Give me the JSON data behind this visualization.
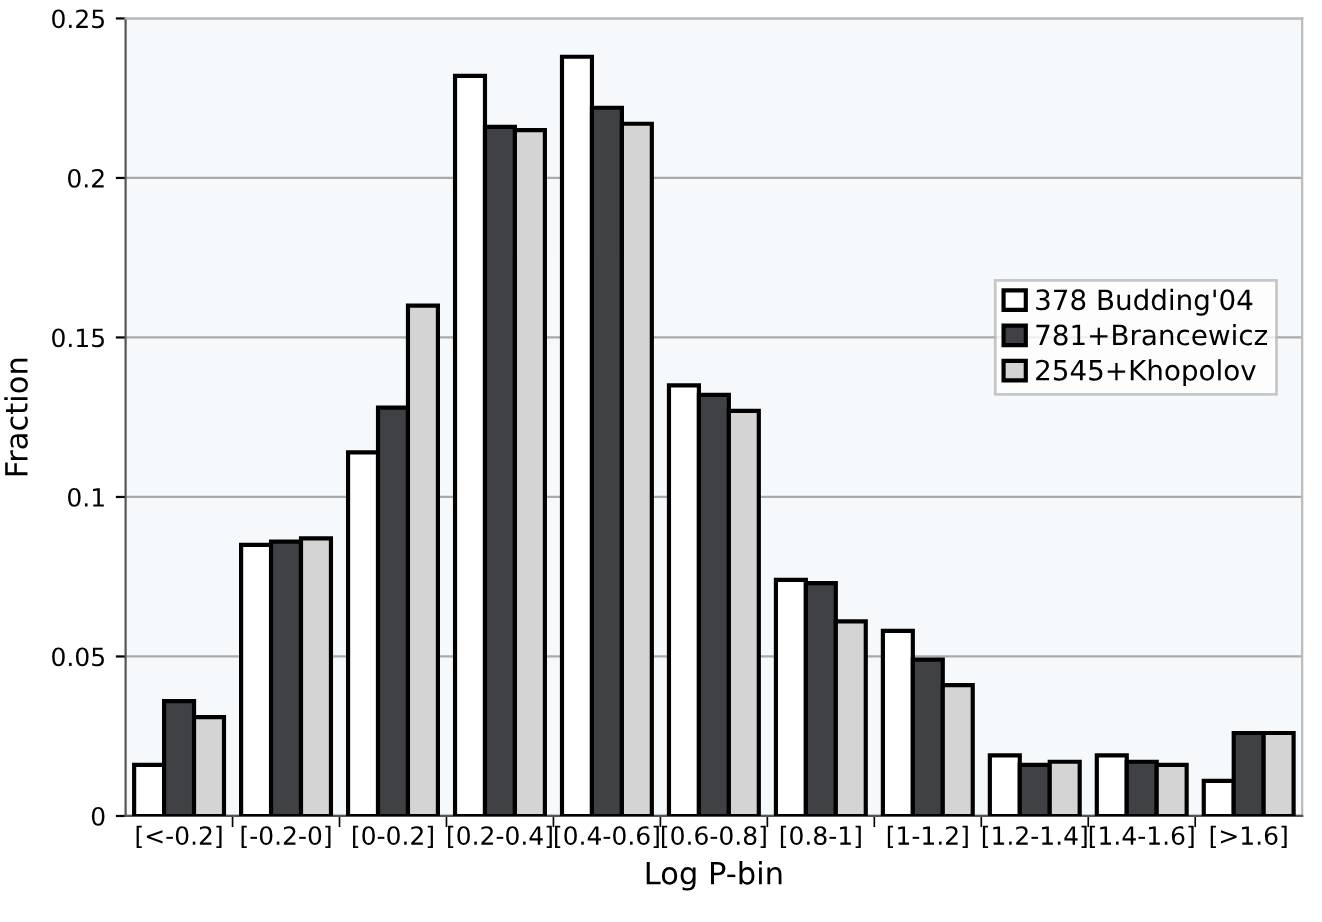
{
  "chart_data": {
    "type": "bar",
    "xlabel": "Log P-bin",
    "ylabel": "Fraction",
    "categories": [
      "[<-0.2]",
      "[-0.2-0]",
      "[0-0.2]",
      "[0.2-0.4]",
      "[0.4-0.6]",
      "[0.6-0.8]",
      "[0.8-1]",
      "[1-1.2]",
      "[1.2-1.4]",
      "[1.4-1.6]",
      "[>1.6]"
    ],
    "series": [
      {
        "name": "378 Budding'04",
        "color": "#ffffff",
        "values": [
          0.016,
          0.085,
          0.114,
          0.232,
          0.238,
          0.135,
          0.074,
          0.058,
          0.019,
          0.019,
          0.011
        ]
      },
      {
        "name": "781+Brancewicz",
        "color": "#3f4144",
        "values": [
          0.036,
          0.086,
          0.128,
          0.216,
          0.222,
          0.132,
          0.073,
          0.049,
          0.016,
          0.017,
          0.026
        ]
      },
      {
        "name": "2545+Khopolov",
        "color": "#d4d4d4",
        "values": [
          0.031,
          0.087,
          0.16,
          0.215,
          0.217,
          0.127,
          0.061,
          0.041,
          0.017,
          0.016,
          0.026
        ]
      }
    ],
    "ylim": [
      0,
      0.25
    ],
    "yticks": [
      0,
      0.05,
      0.1,
      0.15,
      0.2,
      0.25
    ],
    "grid": "y",
    "legend": "right"
  }
}
